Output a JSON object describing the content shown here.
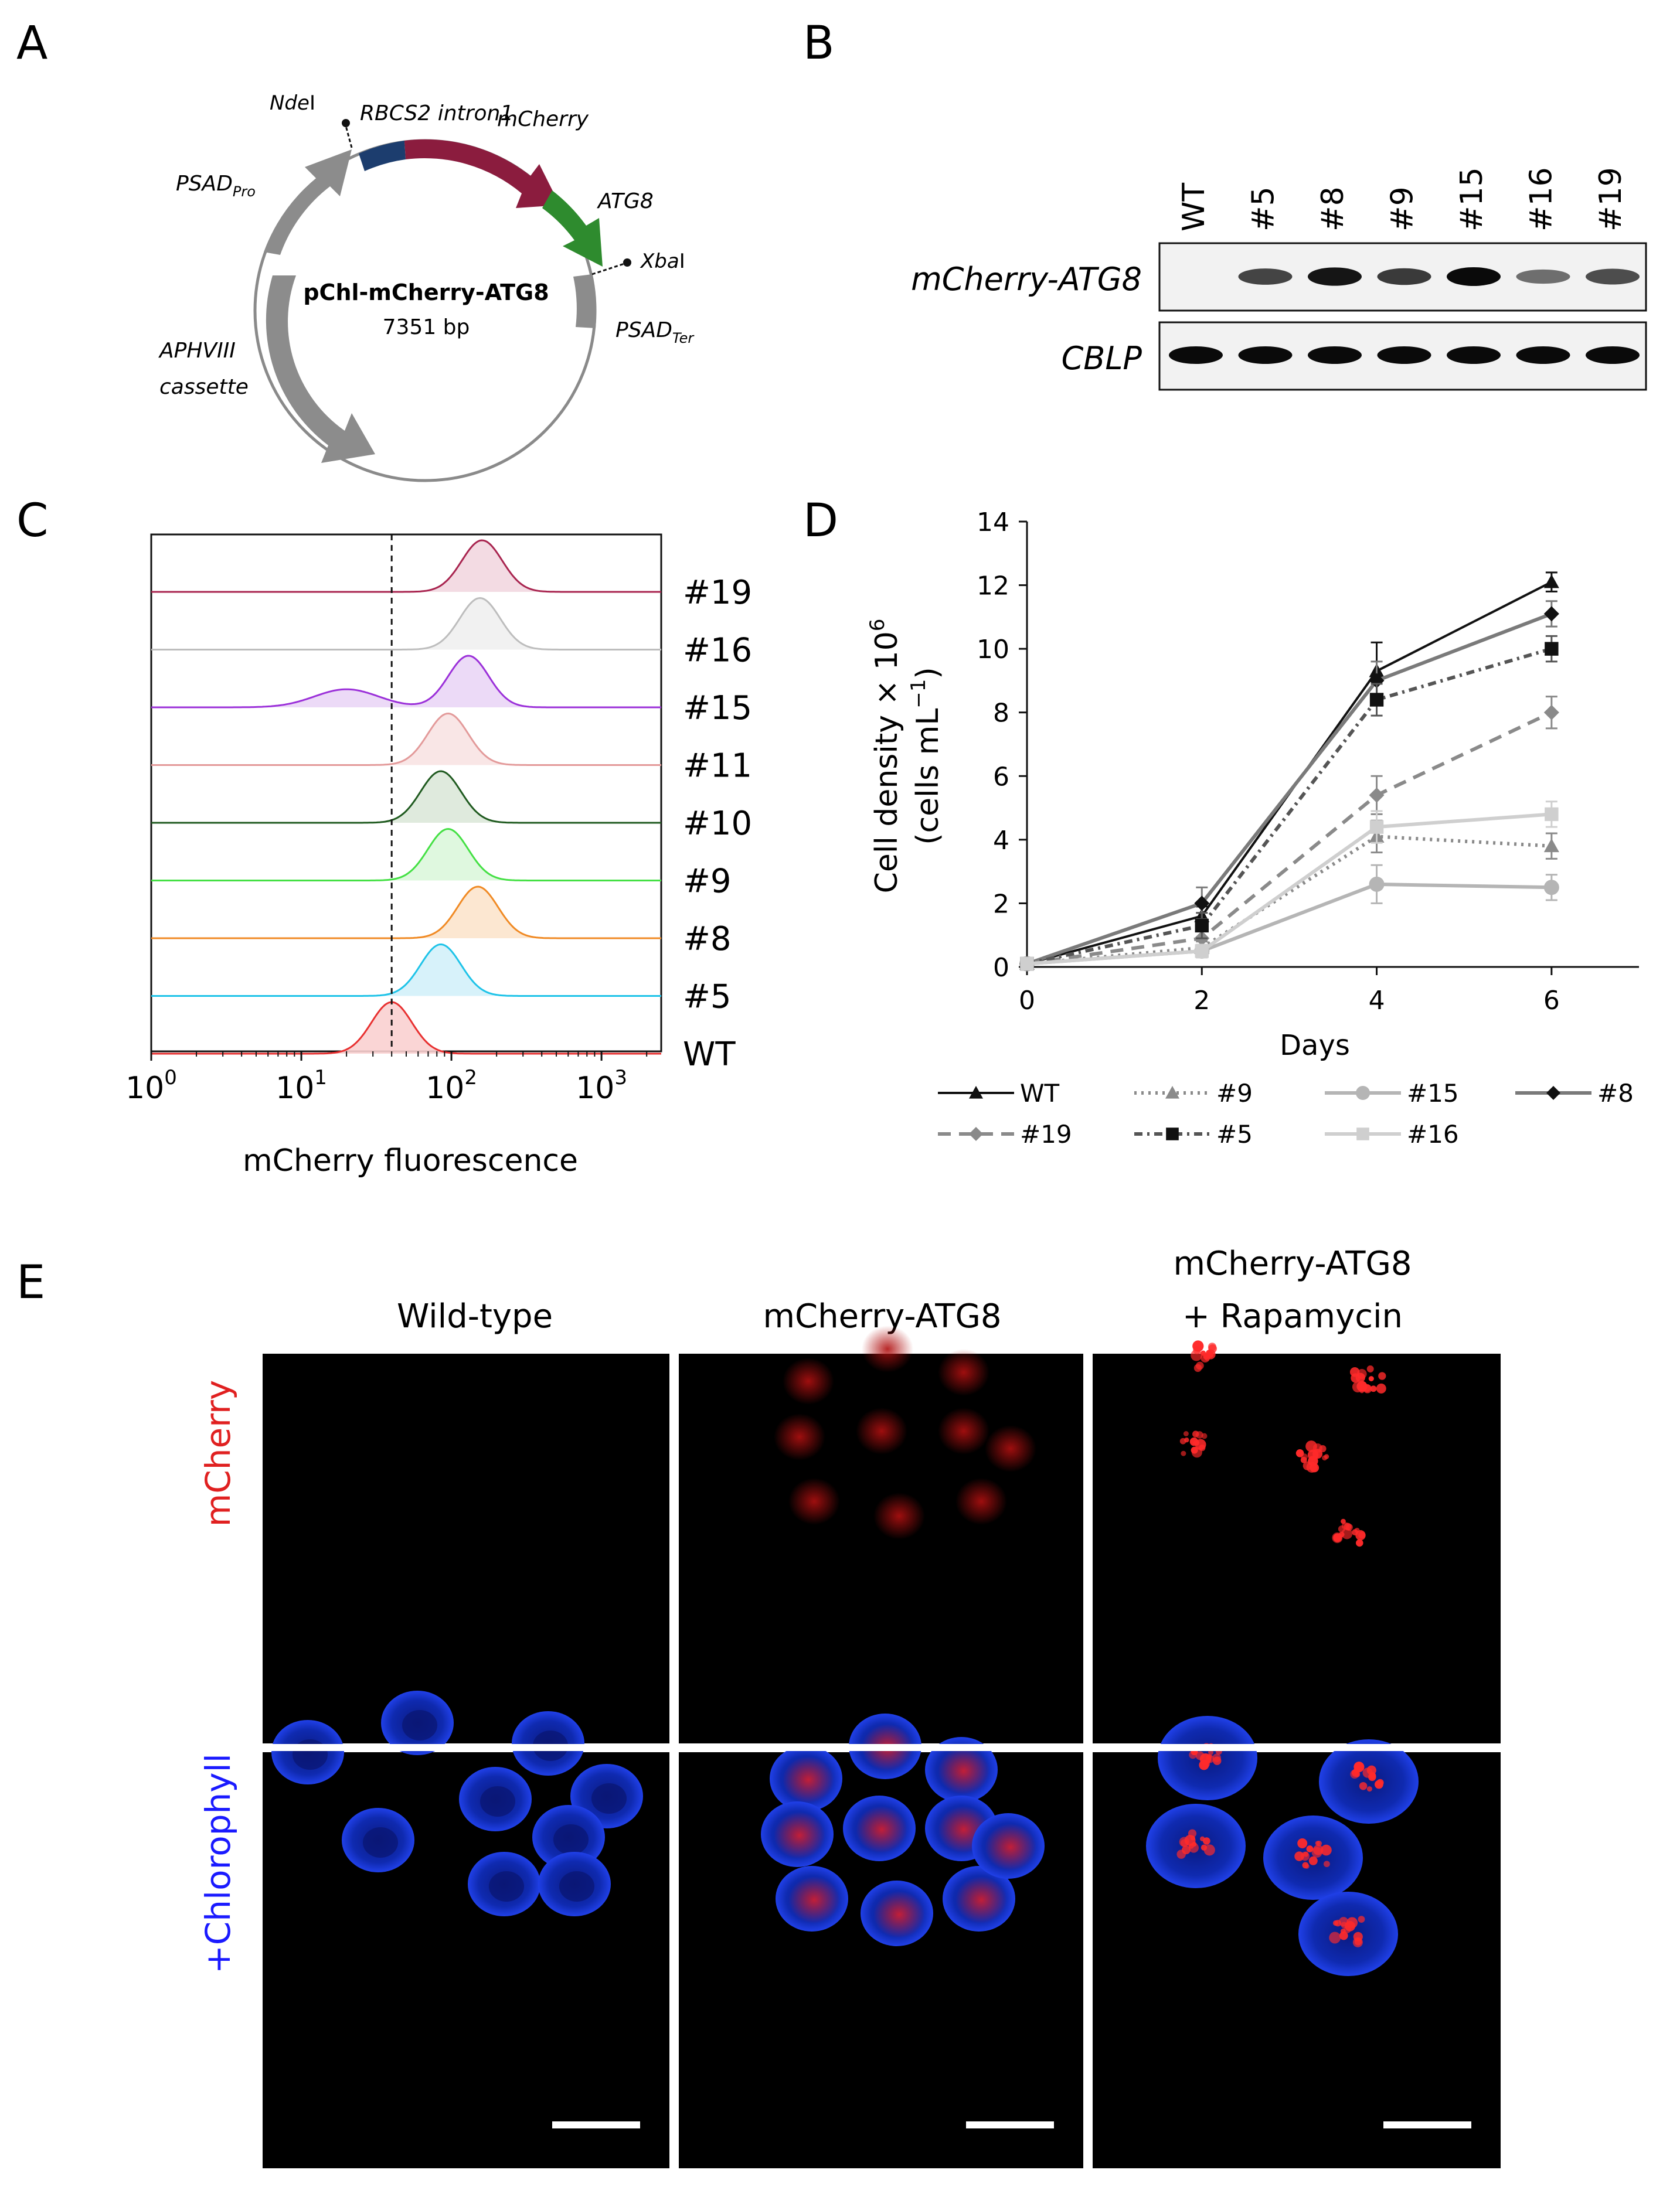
{
  "panels": {
    "a": "A",
    "b": "B",
    "c": "C",
    "d": "D",
    "e": "E"
  },
  "plasmid": {
    "name": "pChl-mCherry-ATG8",
    "size": "7351 bp",
    "labels": {
      "rbcs2_intron": "RBCS2 intron1",
      "mcherry": "mCherry",
      "ndei_main": "Nde",
      "ndei_suffix": "I",
      "atg8": "ATG8",
      "xbai_main": "Xba",
      "xbai_suffix": "I",
      "psad_pro_main": "PSAD",
      "psad_pro_sub": "Pro",
      "psad_ter_main": "PSAD",
      "psad_ter_sub": "Ter",
      "aphviii_line1": "APHVIII",
      "aphviii_line2": "cassette"
    },
    "colors": {
      "backbone": "#8a8a8a",
      "intron": "#1c3d6e",
      "mcherry": "#8b1c3e",
      "atg8": "#2e8b2e",
      "grey_feature": "#8c8c8c"
    }
  },
  "gel": {
    "lanes": [
      "WT",
      "#5",
      "#8",
      "#9",
      "#15",
      "#16",
      "#19"
    ],
    "rows": [
      {
        "label": "mCherry-ATG8",
        "band_intensity": [
          0,
          0.7,
          0.95,
          0.75,
          1.0,
          0.45,
          0.65
        ]
      },
      {
        "label": "CBLP",
        "band_intensity": [
          1,
          1,
          1,
          1,
          1,
          1,
          1
        ]
      }
    ]
  },
  "histograms": {
    "xlabel": "mCherry fluorescence",
    "ticks": [
      {
        "base": "10",
        "exp": "0"
      },
      {
        "base": "10",
        "exp": "1"
      },
      {
        "base": "10",
        "exp": "2"
      },
      {
        "base": "10",
        "exp": "3"
      }
    ],
    "tick_values": [
      1,
      10,
      100,
      1000
    ],
    "threshold": 40,
    "tracks": [
      {
        "label": "#19",
        "peak": 160,
        "color": "#a8244f",
        "fill": "#f2d7e0"
      },
      {
        "label": "#16",
        "peak": 155,
        "color": "#bdbdbd",
        "fill": "#efefef"
      },
      {
        "label": "#15",
        "peak": 130,
        "color": "#9b30d9",
        "fill": "#ead6f6",
        "secondary_peak": 20
      },
      {
        "label": "#11",
        "peak": 95,
        "color": "#e39a9a",
        "fill": "#f8e3e3"
      },
      {
        "label": "#10",
        "peak": 85,
        "color": "#1f5a1f",
        "fill": "#dbe8d9"
      },
      {
        "label": "#9",
        "peak": 95,
        "color": "#44e044",
        "fill": "#dcf7dc"
      },
      {
        "label": "#8",
        "peak": 150,
        "color": "#f08a24",
        "fill": "#fce4cc"
      },
      {
        "label": "#5",
        "peak": 85,
        "color": "#1ec3e8",
        "fill": "#d3f1f9"
      },
      {
        "label": "WT",
        "peak": 40,
        "color": "#e83030",
        "fill": "#f9d0d0"
      }
    ]
  },
  "chart_data": {
    "type": "line",
    "title": "",
    "xlabel": "Days",
    "ylabel_line1": "Cell density × 10",
    "ylabel_exp": "6",
    "ylabel_line2": "(cells mL",
    "ylabel_line2_exp": "−1",
    "ylabel_line2_end": ")",
    "x": [
      0,
      2,
      4,
      6
    ],
    "xticks": [
      "0",
      "2",
      "4",
      "6"
    ],
    "yticks": [
      "0",
      "2",
      "4",
      "6",
      "8",
      "10",
      "12",
      "14"
    ],
    "xlim": [
      0,
      7
    ],
    "ylim": [
      0,
      14
    ],
    "series": [
      {
        "name": "WT",
        "values": [
          0.1,
          1.6,
          9.3,
          12.1
        ],
        "err": [
          0.05,
          0.3,
          0.9,
          0.3
        ],
        "color": "#111111",
        "dash": "",
        "marker": "triangle"
      },
      {
        "name": "#9",
        "values": [
          0.1,
          0.6,
          4.1,
          3.8
        ],
        "err": [
          0.05,
          0.2,
          0.5,
          0.4
        ],
        "color": "#8a8a8a",
        "dash": "4 8",
        "marker": "triangle"
      },
      {
        "name": "#15",
        "values": [
          0.1,
          0.5,
          2.6,
          2.5
        ],
        "err": [
          0.05,
          0.2,
          0.6,
          0.4
        ],
        "color": "#b5b5b5",
        "dash": "",
        "marker": "circle"
      },
      {
        "name": "#8",
        "values": [
          0.1,
          2.0,
          9.0,
          11.1
        ],
        "err": [
          0.05,
          0.5,
          0.6,
          0.4
        ],
        "color": "#7a7a7a",
        "dash": "",
        "marker": "diamond"
      },
      {
        "name": "#19",
        "values": [
          0.1,
          0.9,
          5.4,
          8.0
        ],
        "err": [
          0.05,
          0.3,
          0.6,
          0.5
        ],
        "color": "#8a8a8a",
        "dash": "22 14",
        "marker": "diamond"
      },
      {
        "name": "#5",
        "values": [
          0.1,
          1.3,
          8.4,
          10.0
        ],
        "err": [
          0.05,
          0.4,
          0.5,
          0.4
        ],
        "color": "#555555",
        "dash": "14 8 4 8",
        "marker": "square"
      },
      {
        "name": "#16",
        "values": [
          0.1,
          0.5,
          4.4,
          4.8
        ],
        "err": [
          0.05,
          0.2,
          0.5,
          0.4
        ],
        "color": "#cfcfcf",
        "dash": "",
        "marker": "square"
      }
    ]
  },
  "microscopy": {
    "columns": [
      "Wild-type",
      "mCherry-ATG8",
      "mCherry-ATG8",
      "+ Rapamycin"
    ],
    "rows": [
      "mCherry",
      "+Chlorophyll"
    ],
    "colors": {
      "mcherry_row_label": "#e02020",
      "chlorophyll_row_label": "#1a1aff",
      "cell_blue": "#1030d0",
      "cell_red": "#e01818"
    }
  }
}
